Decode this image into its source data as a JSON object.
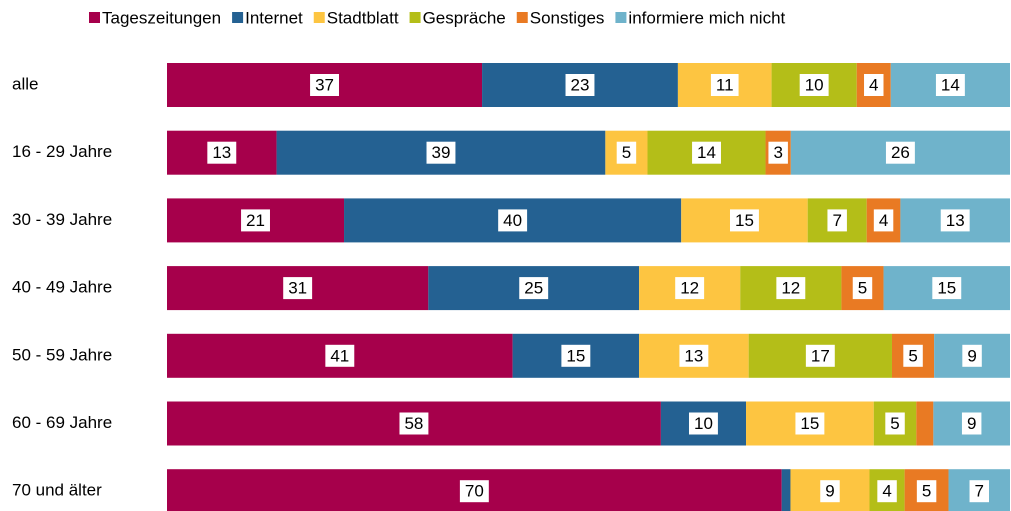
{
  "chart_data": {
    "type": "bar",
    "orientation": "horizontal",
    "stacked": "percent",
    "categories": [
      "alle",
      "16 - 29 Jahre",
      "30 - 39 Jahre",
      "40 - 49 Jahre",
      "50 - 59 Jahre",
      "60 - 69 Jahre",
      "70 und älter"
    ],
    "series": [
      {
        "name": "Tageszeitungen",
        "color": "#a6004b",
        "values": [
          37,
          13,
          21,
          31,
          41,
          58,
          70
        ]
      },
      {
        "name": "Internet",
        "color": "#246192",
        "values": [
          23,
          39,
          40,
          25,
          15,
          10,
          1
        ],
        "value_labels": [
          23,
          39,
          40,
          25,
          15,
          10,
          null
        ]
      },
      {
        "name": "Stadtblatt",
        "color": "#fdc541",
        "values": [
          11,
          5,
          15,
          12,
          13,
          15,
          9
        ]
      },
      {
        "name": "Gespräche",
        "color": "#b4be18",
        "values": [
          10,
          14,
          7,
          12,
          17,
          5,
          4
        ]
      },
      {
        "name": "Sonstiges",
        "color": "#e97a23",
        "values": [
          4,
          3,
          4,
          5,
          5,
          2,
          5
        ],
        "value_labels": [
          4,
          3,
          4,
          5,
          5,
          null,
          5
        ]
      },
      {
        "name": "informiere mich nicht",
        "color": "#6fb3cb",
        "values": [
          14,
          26,
          13,
          15,
          9,
          9,
          7
        ]
      }
    ],
    "legend": "top"
  }
}
